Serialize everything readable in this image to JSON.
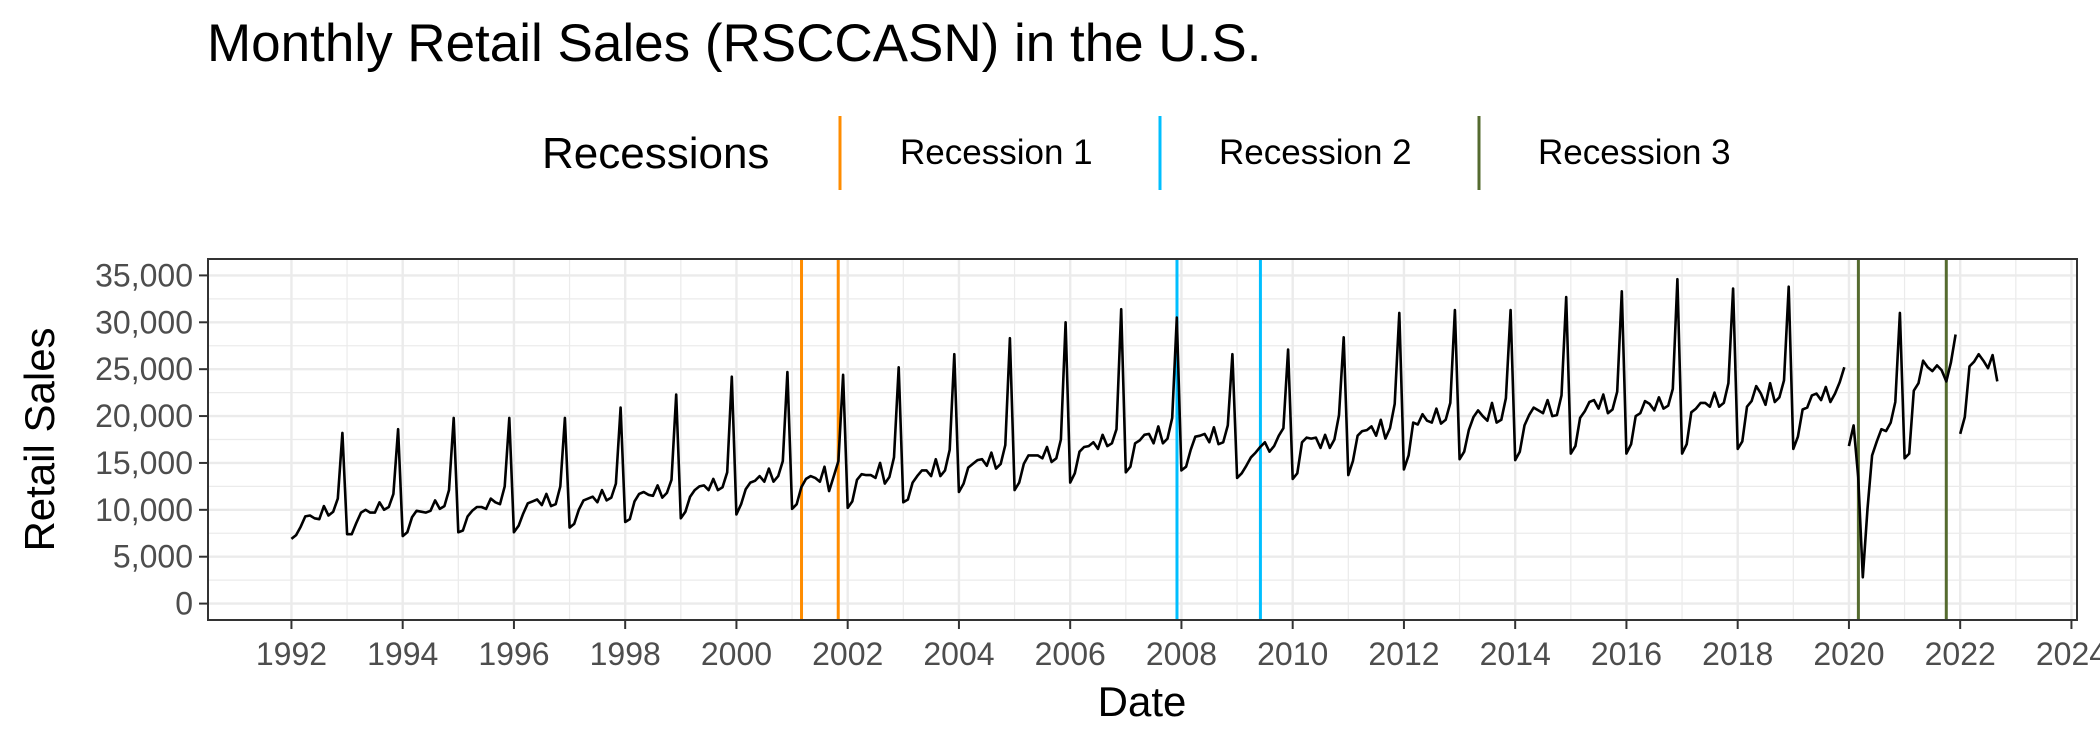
{
  "chart_data": {
    "type": "line",
    "title": "Monthly Retail Sales (RSCCASN) in the U.S.",
    "xlabel": "Date",
    "ylabel": "Retail Sales",
    "xlim": [
      1990.5,
      2024.1
    ],
    "ylim": [
      -1750,
      36750
    ],
    "x_ticks": [
      1992,
      1994,
      1996,
      1998,
      2000,
      2002,
      2004,
      2006,
      2008,
      2010,
      2012,
      2014,
      2016,
      2018,
      2020,
      2022,
      2024
    ],
    "x_tick_labels": [
      "1992",
      "1994",
      "1996",
      "1998",
      "2000",
      "2002",
      "2004",
      "2006",
      "2008",
      "2010",
      "2012",
      "2014",
      "2016",
      "2018",
      "2020",
      "2022",
      "2024"
    ],
    "y_ticks": [
      0,
      5000,
      10000,
      15000,
      20000,
      25000,
      30000,
      35000
    ],
    "y_tick_labels": [
      "0",
      "5,000",
      "10,000",
      "15,000",
      "20,000",
      "25,000",
      "30,000",
      "35,000"
    ],
    "grid": true,
    "legend": {
      "title": "Recessions",
      "position": "top",
      "entries": [
        {
          "label": "Recession 1",
          "color": "#FF8C00"
        },
        {
          "label": "Recession 2",
          "color": "#00BFFF"
        },
        {
          "label": "Recession 3",
          "color": "#556B2F"
        }
      ]
    },
    "recessions": [
      {
        "name": "Recession 1",
        "start": 2001.17,
        "end": 2001.83,
        "color": "#FF8C00"
      },
      {
        "name": "Recession 2",
        "start": 2007.92,
        "end": 2009.42,
        "color": "#00BFFF"
      },
      {
        "name": "Recession 3",
        "start": 2020.17,
        "end": 2021.75,
        "color": "#556B2F"
      }
    ],
    "series": [
      {
        "name": "RSCCASN",
        "color": "#000000",
        "start_year": 1992,
        "start_month": 1,
        "values": [
          6900,
          7300,
          8200,
          9300,
          9400,
          9100,
          9000,
          10400,
          9400,
          9800,
          11200,
          18200,
          7400,
          7400,
          8600,
          9700,
          10000,
          9700,
          9700,
          10800,
          10000,
          10300,
          11700,
          18600,
          7200,
          7600,
          9200,
          9900,
          9800,
          9700,
          9900,
          11000,
          10100,
          10400,
          12100,
          19800,
          7600,
          7800,
          9300,
          9900,
          10300,
          10300,
          10100,
          11200,
          10800,
          10600,
          12500,
          19800,
          7600,
          8300,
          9600,
          10700,
          10900,
          11100,
          10500,
          11700,
          10400,
          10600,
          12500,
          19800,
          8100,
          8500,
          10000,
          11000,
          11200,
          11400,
          10800,
          12100,
          11000,
          11300,
          12800,
          20900,
          8700,
          9000,
          10900,
          11700,
          11900,
          11600,
          11500,
          12600,
          11300,
          11800,
          13200,
          22300,
          9100,
          9800,
          11400,
          12100,
          12500,
          12600,
          12100,
          13300,
          12100,
          12400,
          14000,
          24200,
          9500,
          10600,
          12200,
          12900,
          13100,
          13600,
          13000,
          14400,
          13000,
          13600,
          15200,
          24700,
          10100,
          10600,
          12400,
          13300,
          13600,
          13400,
          13000,
          14600,
          12000,
          13600,
          15200,
          24400,
          10200,
          10900,
          13200,
          13800,
          13700,
          13700,
          13400,
          15000,
          12800,
          13500,
          15600,
          25200,
          10800,
          11100,
          12900,
          13600,
          14200,
          14200,
          13600,
          15400,
          13600,
          14200,
          16400,
          26600,
          11900,
          12800,
          14500,
          14900,
          15300,
          15400,
          14700,
          16100,
          14400,
          14900,
          16900,
          28300,
          12100,
          12900,
          14900,
          15800,
          15800,
          15800,
          15500,
          16700,
          15100,
          15500,
          17500,
          30000,
          12900,
          13900,
          16200,
          16700,
          16800,
          17200,
          16500,
          18000,
          16800,
          17100,
          18600,
          31400,
          14000,
          14600,
          17100,
          17400,
          18000,
          18100,
          17100,
          18900,
          17100,
          17600,
          19800,
          30500,
          14200,
          14600,
          16400,
          17800,
          17900,
          18100,
          17200,
          18800,
          17000,
          17200,
          19000,
          26600,
          13400,
          13900,
          14700,
          15600,
          16100,
          16700,
          17200,
          16200,
          16800,
          17900,
          18700,
          27100,
          13300,
          13900,
          17200,
          17700,
          17600,
          17700,
          16600,
          18000,
          16600,
          17500,
          20100,
          28400,
          13700,
          15200,
          17900,
          18400,
          18500,
          18900,
          17900,
          19600,
          17600,
          18700,
          21300,
          31000,
          14300,
          15800,
          19300,
          19100,
          20200,
          19500,
          19300,
          20800,
          19200,
          19600,
          21400,
          31300,
          15400,
          16200,
          18500,
          19900,
          20600,
          20000,
          19500,
          21400,
          19300,
          19600,
          21900,
          31300,
          15300,
          16200,
          19000,
          20100,
          20900,
          20600,
          20300,
          21700,
          20000,
          20100,
          22200,
          32700,
          16000,
          16800,
          19800,
          20500,
          21500,
          21700,
          20800,
          22300,
          20300,
          20700,
          22600,
          33300,
          16000,
          17000,
          20000,
          20300,
          21600,
          21300,
          20600,
          22000,
          20800,
          21100,
          22900,
          34600,
          16000,
          17000,
          20400,
          20800,
          21400,
          21400,
          21000,
          22500,
          21000,
          21400,
          23500,
          33600,
          16500,
          17300,
          21000,
          21600,
          23200,
          22400,
          21200,
          23500,
          21500,
          22000,
          23800,
          33800,
          16500,
          17800,
          20700,
          20900,
          22200,
          22400,
          21700,
          23100,
          21500,
          22400,
          23600,
          25200,
          16800,
          19000,
          13500,
          2800,
          10100,
          15800,
          17300,
          18600,
          18400,
          19300,
          21500,
          31000,
          15500,
          16000,
          22700,
          23500,
          25900,
          25200,
          24800,
          25400,
          24900,
          23700,
          25700,
          28700,
          18100,
          19900,
          25300,
          25800,
          26600,
          25900,
          25100,
          26500,
          23700
        ],
        "gaps": [
          [
            2019.917,
            2020.0
          ],
          [
            2021.833,
            2022.0
          ]
        ]
      }
    ]
  }
}
